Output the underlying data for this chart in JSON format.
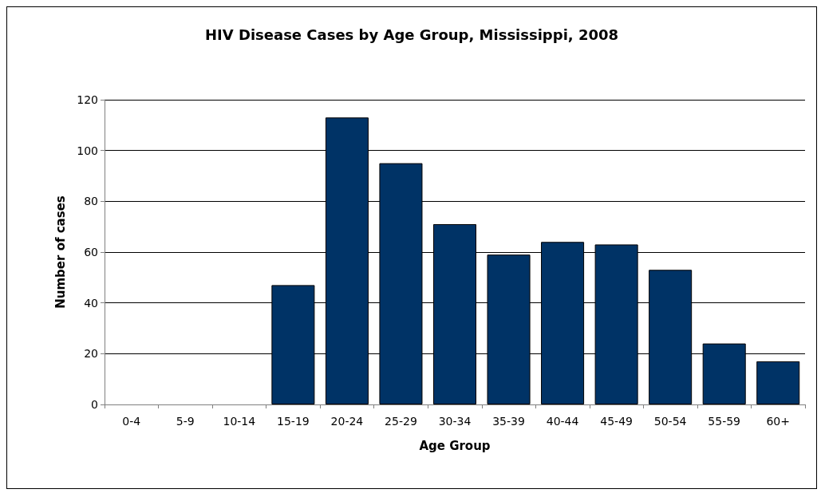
{
  "chart_data": {
    "type": "bar",
    "title": "HIV Disease Cases by Age Group, Mississippi, 2008",
    "xlabel": "Age Group",
    "ylabel": "Number of cases",
    "categories": [
      "0-4",
      "5-9",
      "10-14",
      "15-19",
      "20-24",
      "25-29",
      "30-34",
      "35-39",
      "40-44",
      "45-49",
      "50-54",
      "55-59",
      "60+"
    ],
    "values": [
      0,
      0,
      0,
      47,
      113,
      95,
      71,
      59,
      64,
      63,
      53,
      24,
      17
    ],
    "color": "#003366",
    "ylim": [
      0,
      120
    ],
    "yticks": [
      0,
      20,
      40,
      60,
      80,
      100,
      120
    ],
    "grid": "y"
  }
}
